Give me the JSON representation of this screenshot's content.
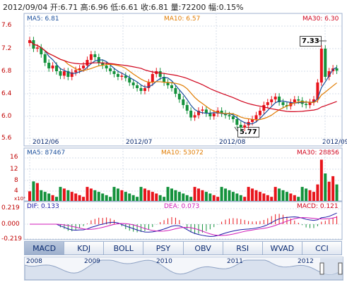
{
  "header": {
    "text": "2012/09/04 开:6.71  高:6.96  低:6.61  收:6.81  量:72200  幅:0.15%"
  },
  "price_panel": {
    "ma5": "MA5: 6.81",
    "ma10": "MA10: 6.57",
    "ma30": "MA30: 6.30",
    "y_ticks": [
      "7.6",
      "7.2",
      "6.8",
      "6.4",
      "6.0",
      "5.6"
    ],
    "x_ticks": [
      "2012/06",
      "2012/07",
      "2012/08",
      "2012/09"
    ],
    "high_callout": "7.33",
    "low_callout": "5.77",
    "colors": {
      "up": "#e8141b",
      "down": "#14923c",
      "ma5": "#1a4f9c",
      "ma10": "#e07b00",
      "ma30": "#d0021b"
    }
  },
  "volume_panel": {
    "ma5": "MA5: 87467",
    "ma10": "MA10: 53072",
    "ma30": "MA30: 28856",
    "y_ticks": [
      "16",
      "12",
      "8",
      "4"
    ],
    "unit": "x10⁴"
  },
  "macd_panel": {
    "dif": "DIF: 0.133",
    "dea": "DEA: 0.073",
    "macd": "MACD: 0.121",
    "y_ticks": [
      "0.219",
      "0.000",
      "-0.219"
    ]
  },
  "tabs": [
    "MACD",
    "KDJ",
    "BOLL",
    "PSY",
    "OBV",
    "RSI",
    "WVAD",
    "CCI"
  ],
  "active_tab": "MACD",
  "overview": {
    "years": [
      "2008",
      "2009",
      "2010",
      "2011",
      "2012"
    ]
  }
}
